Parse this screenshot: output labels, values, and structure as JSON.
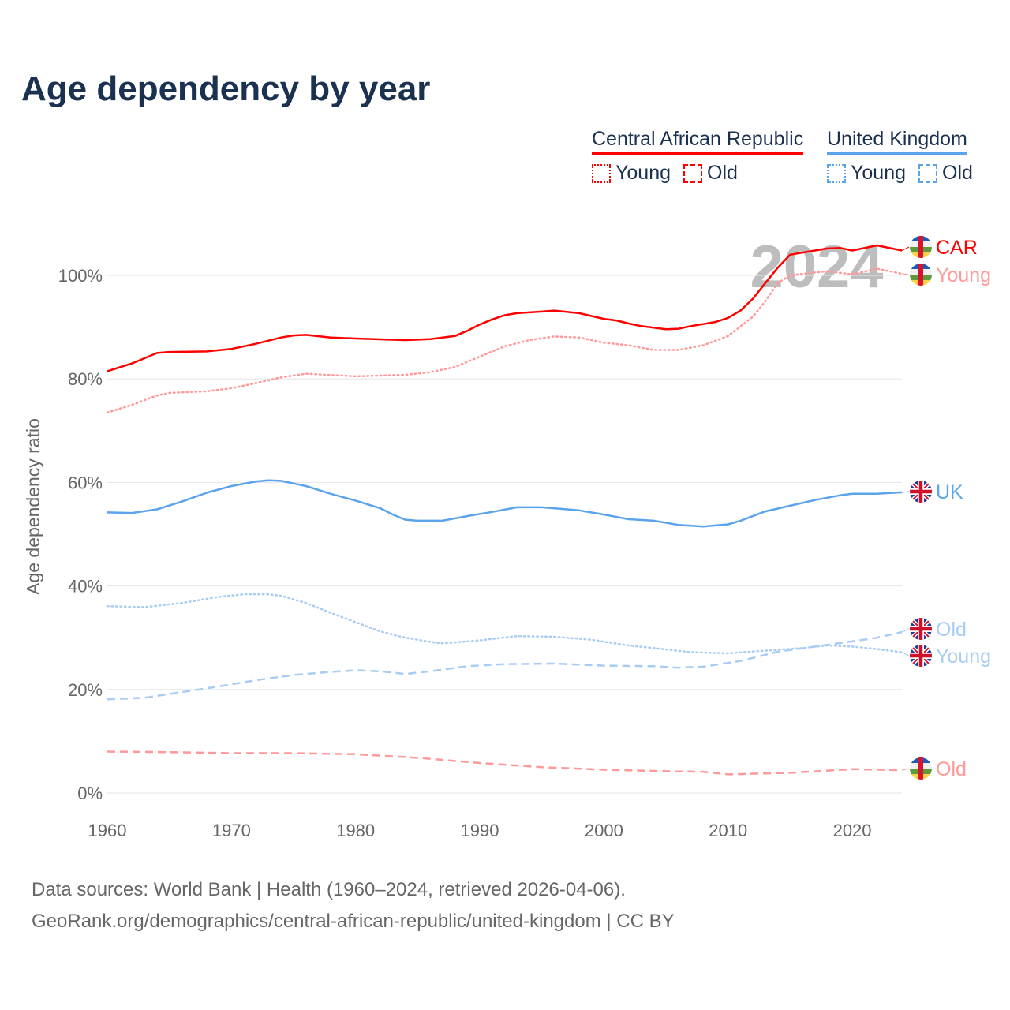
{
  "title": "Age dependency by year",
  "legend": {
    "groups": [
      {
        "name": "Central African Republic",
        "color": "#ff0000",
        "light": "#ff9999",
        "items": [
          "Young",
          "Old"
        ]
      },
      {
        "name": "United Kingdom",
        "color": "#5ba4ec",
        "light": "#a8ccf2",
        "items": [
          "Young",
          "Old"
        ]
      }
    ]
  },
  "footer": {
    "line1": "Data sources: World Bank | Health (1960–2024, retrieved 2026-04-06).",
    "line2": "GeoRank.org/demographics/central-african-republic/united-kingdom | CC BY"
  },
  "chart_data": {
    "type": "line",
    "title": "Age dependency by year",
    "xlabel": "",
    "ylabel": "Age dependency ratio",
    "xlim": [
      1960,
      2024
    ],
    "ylim": [
      0,
      100
    ],
    "x_ticks": [
      "1960",
      "1970",
      "1980",
      "1990",
      "2000",
      "2010",
      "2020"
    ],
    "y_ticks": [
      "0%",
      "20%",
      "40%",
      "60%",
      "80%",
      "100%"
    ],
    "year_watermark": "2024",
    "grid": true,
    "series": [
      {
        "name": "CAR",
        "label": "CAR",
        "color": "#ff0000",
        "dash": "solid",
        "points": [
          [
            1960,
            81.5
          ],
          [
            1962,
            83
          ],
          [
            1963,
            84
          ],
          [
            1964,
            85
          ],
          [
            1965,
            85.2
          ],
          [
            1968,
            85.3
          ],
          [
            1970,
            85.8
          ],
          [
            1972,
            86.8
          ],
          [
            1974,
            88
          ],
          [
            1975,
            88.4
          ],
          [
            1976,
            88.5
          ],
          [
            1978,
            88
          ],
          [
            1980,
            87.8
          ],
          [
            1984,
            87.5
          ],
          [
            1986,
            87.7
          ],
          [
            1988,
            88.3
          ],
          [
            1989,
            89.3
          ],
          [
            1990,
            90.5
          ],
          [
            1991,
            91.5
          ],
          [
            1992,
            92.3
          ],
          [
            1993,
            92.7
          ],
          [
            1995,
            93
          ],
          [
            1996,
            93.2
          ],
          [
            1998,
            92.7
          ],
          [
            2000,
            91.6
          ],
          [
            2001,
            91.3
          ],
          [
            2002,
            90.7
          ],
          [
            2003,
            90.2
          ],
          [
            2005,
            89.6
          ],
          [
            2006,
            89.7
          ],
          [
            2007,
            90.2
          ],
          [
            2008,
            90.6
          ],
          [
            2009,
            91
          ],
          [
            2010,
            91.8
          ],
          [
            2011,
            93.2
          ],
          [
            2012,
            95.5
          ],
          [
            2013,
            98.5
          ],
          [
            2014,
            101.5
          ],
          [
            2015,
            104
          ],
          [
            2016,
            104.4
          ],
          [
            2018,
            105.2
          ],
          [
            2019,
            105.3
          ],
          [
            2020,
            104.8
          ],
          [
            2022,
            105.8
          ],
          [
            2024,
            104.8
          ]
        ]
      },
      {
        "name": "CAR Young",
        "label": "Young",
        "color": "#ff9999",
        "dash": "dotted",
        "points": [
          [
            1960,
            73.5
          ],
          [
            1962,
            75
          ],
          [
            1964,
            76.8
          ],
          [
            1965,
            77.3
          ],
          [
            1968,
            77.6
          ],
          [
            1970,
            78.2
          ],
          [
            1972,
            79.2
          ],
          [
            1974,
            80.3
          ],
          [
            1976,
            81
          ],
          [
            1980,
            80.5
          ],
          [
            1984,
            80.8
          ],
          [
            1986,
            81.3
          ],
          [
            1988,
            82.3
          ],
          [
            1990,
            84.3
          ],
          [
            1992,
            86.3
          ],
          [
            1994,
            87.5
          ],
          [
            1996,
            88.2
          ],
          [
            1998,
            88
          ],
          [
            2000,
            87
          ],
          [
            2002,
            86.5
          ],
          [
            2004,
            85.6
          ],
          [
            2006,
            85.6
          ],
          [
            2008,
            86.5
          ],
          [
            2010,
            88.3
          ],
          [
            2012,
            92
          ],
          [
            2013,
            95
          ],
          [
            2014,
            98.5
          ],
          [
            2015,
            100
          ],
          [
            2016,
            100.3
          ],
          [
            2018,
            100.8
          ],
          [
            2020,
            100.2
          ],
          [
            2022,
            101.3
          ],
          [
            2024,
            100.3
          ]
        ]
      },
      {
        "name": "CAR Old",
        "label": "Old",
        "color": "#ff9999",
        "dash": "dashed",
        "points": [
          [
            1960,
            8
          ],
          [
            1965,
            7.9
          ],
          [
            1970,
            7.7
          ],
          [
            1975,
            7.7
          ],
          [
            1980,
            7.5
          ],
          [
            1985,
            6.8
          ],
          [
            1990,
            5.8
          ],
          [
            1995,
            5
          ],
          [
            2000,
            4.5
          ],
          [
            2005,
            4.2
          ],
          [
            2008,
            4.1
          ],
          [
            2010,
            3.6
          ],
          [
            2015,
            3.9
          ],
          [
            2020,
            4.6
          ],
          [
            2024,
            4.4
          ]
        ]
      },
      {
        "name": "UK",
        "label": "UK",
        "color": "#5ba4ec",
        "dash": "solid",
        "points": [
          [
            1960,
            54.2
          ],
          [
            1962,
            54.1
          ],
          [
            1964,
            54.8
          ],
          [
            1966,
            56.3
          ],
          [
            1968,
            58
          ],
          [
            1970,
            59.3
          ],
          [
            1972,
            60.2
          ],
          [
            1973,
            60.4
          ],
          [
            1974,
            60.3
          ],
          [
            1976,
            59.3
          ],
          [
            1978,
            57.8
          ],
          [
            1980,
            56.5
          ],
          [
            1982,
            55
          ],
          [
            1983,
            53.8
          ],
          [
            1984,
            52.8
          ],
          [
            1985,
            52.6
          ],
          [
            1987,
            52.6
          ],
          [
            1989,
            53.5
          ],
          [
            1991,
            54.3
          ],
          [
            1993,
            55.2
          ],
          [
            1995,
            55.2
          ],
          [
            1998,
            54.6
          ],
          [
            2000,
            53.8
          ],
          [
            2002,
            52.9
          ],
          [
            2004,
            52.6
          ],
          [
            2006,
            51.8
          ],
          [
            2008,
            51.5
          ],
          [
            2010,
            51.9
          ],
          [
            2011,
            52.6
          ],
          [
            2013,
            54.4
          ],
          [
            2015,
            55.5
          ],
          [
            2017,
            56.6
          ],
          [
            2019,
            57.5
          ],
          [
            2020,
            57.8
          ],
          [
            2022,
            57.8
          ],
          [
            2024,
            58.1
          ]
        ]
      },
      {
        "name": "UK Young",
        "label": "Young",
        "color": "#a8ccf2",
        "dash": "dotted",
        "points": [
          [
            1960,
            36.1
          ],
          [
            1963,
            35.9
          ],
          [
            1966,
            36.7
          ],
          [
            1969,
            37.9
          ],
          [
            1971,
            38.4
          ],
          [
            1973,
            38.4
          ],
          [
            1974,
            38.1
          ],
          [
            1976,
            36.7
          ],
          [
            1978,
            34.8
          ],
          [
            1980,
            33
          ],
          [
            1982,
            31.2
          ],
          [
            1984,
            30
          ],
          [
            1986,
            29.2
          ],
          [
            1987,
            28.9
          ],
          [
            1990,
            29.5
          ],
          [
            1993,
            30.3
          ],
          [
            1996,
            30.2
          ],
          [
            1999,
            29.6
          ],
          [
            2002,
            28.5
          ],
          [
            2004,
            28
          ],
          [
            2007,
            27.2
          ],
          [
            2010,
            27
          ],
          [
            2013,
            27.5
          ],
          [
            2016,
            28
          ],
          [
            2018,
            28.5
          ],
          [
            2020,
            28.3
          ],
          [
            2022,
            27.8
          ],
          [
            2024,
            27.2
          ]
        ]
      },
      {
        "name": "UK Old",
        "label": "Old",
        "color": "#a8ccf2",
        "dash": "dashed",
        "points": [
          [
            1960,
            18.1
          ],
          [
            1963,
            18.4
          ],
          [
            1966,
            19.5
          ],
          [
            1969,
            20.6
          ],
          [
            1972,
            21.8
          ],
          [
            1975,
            22.8
          ],
          [
            1978,
            23.4
          ],
          [
            1980,
            23.7
          ],
          [
            1982,
            23.5
          ],
          [
            1984,
            23
          ],
          [
            1986,
            23.5
          ],
          [
            1989,
            24.5
          ],
          [
            1992,
            24.9
          ],
          [
            1996,
            25
          ],
          [
            2000,
            24.6
          ],
          [
            2004,
            24.5
          ],
          [
            2006,
            24.2
          ],
          [
            2008,
            24.4
          ],
          [
            2011,
            25.5
          ],
          [
            2014,
            27.3
          ],
          [
            2017,
            28.3
          ],
          [
            2020,
            29.3
          ],
          [
            2022,
            30
          ],
          [
            2024,
            31.1
          ]
        ]
      }
    ]
  }
}
